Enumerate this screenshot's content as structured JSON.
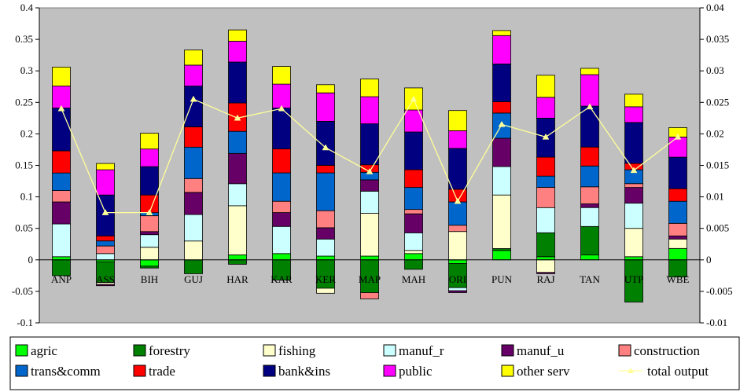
{
  "chart_data": {
    "type": "bar",
    "stacked": true,
    "categories": [
      "ANP",
      "ASS",
      "BIH",
      "GUJ",
      "HAR",
      "KAR",
      "KER",
      "MAP",
      "MAH",
      "ORI",
      "PUN",
      "RAJ",
      "TAN",
      "UTP",
      "WBE"
    ],
    "y_left": {
      "min": -0.1,
      "max": 0.4,
      "ticks": [
        "-0.1",
        "-0.05",
        "0",
        "0.05",
        "0.1",
        "0.15",
        "0.2",
        "0.25",
        "0.3",
        "0.35",
        "0.4"
      ]
    },
    "y_right": {
      "min": -0.01,
      "max": 0.04,
      "ticks": [
        "-0.01",
        "-0.005",
        "0",
        "0.005",
        "0.01",
        "0.015",
        "0.02",
        "0.025",
        "0.03",
        "0.035",
        "0.04"
      ]
    },
    "grid": false,
    "plot_background": "#c0c0c0",
    "legend_position": "bottom",
    "series": [
      {
        "name": "agric",
        "color": "#00ff00",
        "values": [
          0.005,
          -0.003,
          -0.01,
          0.0,
          0.008,
          0.01,
          0.006,
          0.006,
          0.01,
          -0.006,
          0.015,
          0.005,
          0.008,
          0.005,
          0.018
        ]
      },
      {
        "name": "forestry",
        "color": "#008000",
        "values": [
          -0.025,
          -0.033,
          -0.003,
          -0.022,
          -0.007,
          -0.032,
          -0.045,
          -0.052,
          -0.015,
          -0.038,
          0.003,
          0.038,
          0.045,
          -0.067,
          -0.027
        ]
      },
      {
        "name": "fishing",
        "color": "#ffffcc",
        "values": [
          0.0,
          -0.003,
          0.02,
          0.03,
          0.078,
          0.0,
          -0.008,
          0.068,
          0.005,
          0.045,
          0.085,
          -0.02,
          0.0,
          0.045,
          0.015
        ]
      },
      {
        "name": "manuf_r",
        "color": "#ccffff",
        "values": [
          0.052,
          0.01,
          0.02,
          0.042,
          0.035,
          0.043,
          0.027,
          0.035,
          0.028,
          -0.005,
          0.045,
          0.04,
          0.03,
          0.04,
          0.0
        ]
      },
      {
        "name": "manuf_u",
        "color": "#660066",
        "values": [
          0.035,
          -0.002,
          0.005,
          0.035,
          0.048,
          0.022,
          0.018,
          0.018,
          0.03,
          -0.003,
          0.045,
          -0.002,
          0.006,
          0.025,
          0.005
        ]
      },
      {
        "name": "construction",
        "color": "#ff8080",
        "values": [
          0.018,
          0.012,
          0.025,
          0.022,
          0.0,
          0.018,
          0.027,
          -0.01,
          0.007,
          0.01,
          0.0,
          0.032,
          0.027,
          0.006,
          0.02
        ]
      },
      {
        "name": "trans&comm",
        "color": "#0066cc",
        "values": [
          0.028,
          0.008,
          0.005,
          0.05,
          0.035,
          0.045,
          0.06,
          0.012,
          0.035,
          0.037,
          0.04,
          0.018,
          0.033,
          0.022,
          0.035
        ]
      },
      {
        "name": "trade",
        "color": "#ff0000",
        "values": [
          0.035,
          0.008,
          0.028,
          0.032,
          0.045,
          0.038,
          0.012,
          0.012,
          0.028,
          0.02,
          0.018,
          0.03,
          0.03,
          0.01,
          0.02
        ]
      },
      {
        "name": "bank&ins",
        "color": "#000080",
        "values": [
          0.068,
          0.065,
          0.045,
          0.065,
          0.065,
          0.065,
          0.07,
          0.065,
          0.06,
          0.065,
          0.06,
          0.062,
          0.065,
          0.065,
          0.05
        ]
      },
      {
        "name": "public",
        "color": "#ff00ff",
        "values": [
          0.035,
          0.04,
          0.028,
          0.033,
          0.033,
          0.038,
          0.045,
          0.043,
          0.035,
          0.028,
          0.045,
          0.033,
          0.05,
          0.025,
          0.032
        ]
      },
      {
        "name": "other serv",
        "color": "#ffff00",
        "values": [
          0.03,
          0.01,
          0.025,
          0.024,
          0.018,
          0.028,
          0.013,
          0.028,
          0.035,
          0.032,
          0.008,
          0.035,
          0.01,
          0.02,
          0.015
        ]
      }
    ],
    "line_series": {
      "name": "total output",
      "color": "#ffff99",
      "axis": "right",
      "values": [
        0.024,
        0.0075,
        0.0075,
        0.0255,
        0.0225,
        0.024,
        0.0178,
        0.014,
        0.0255,
        0.0093,
        0.0215,
        0.0195,
        0.0243,
        0.0142,
        0.0195
      ]
    },
    "legend": [
      [
        "agric",
        "forestry",
        "fishing",
        "manuf_r",
        "manuf_u",
        "construction"
      ],
      [
        "trans&comm",
        "trade",
        "bank&ins",
        "public",
        "other serv",
        "total output"
      ]
    ]
  }
}
